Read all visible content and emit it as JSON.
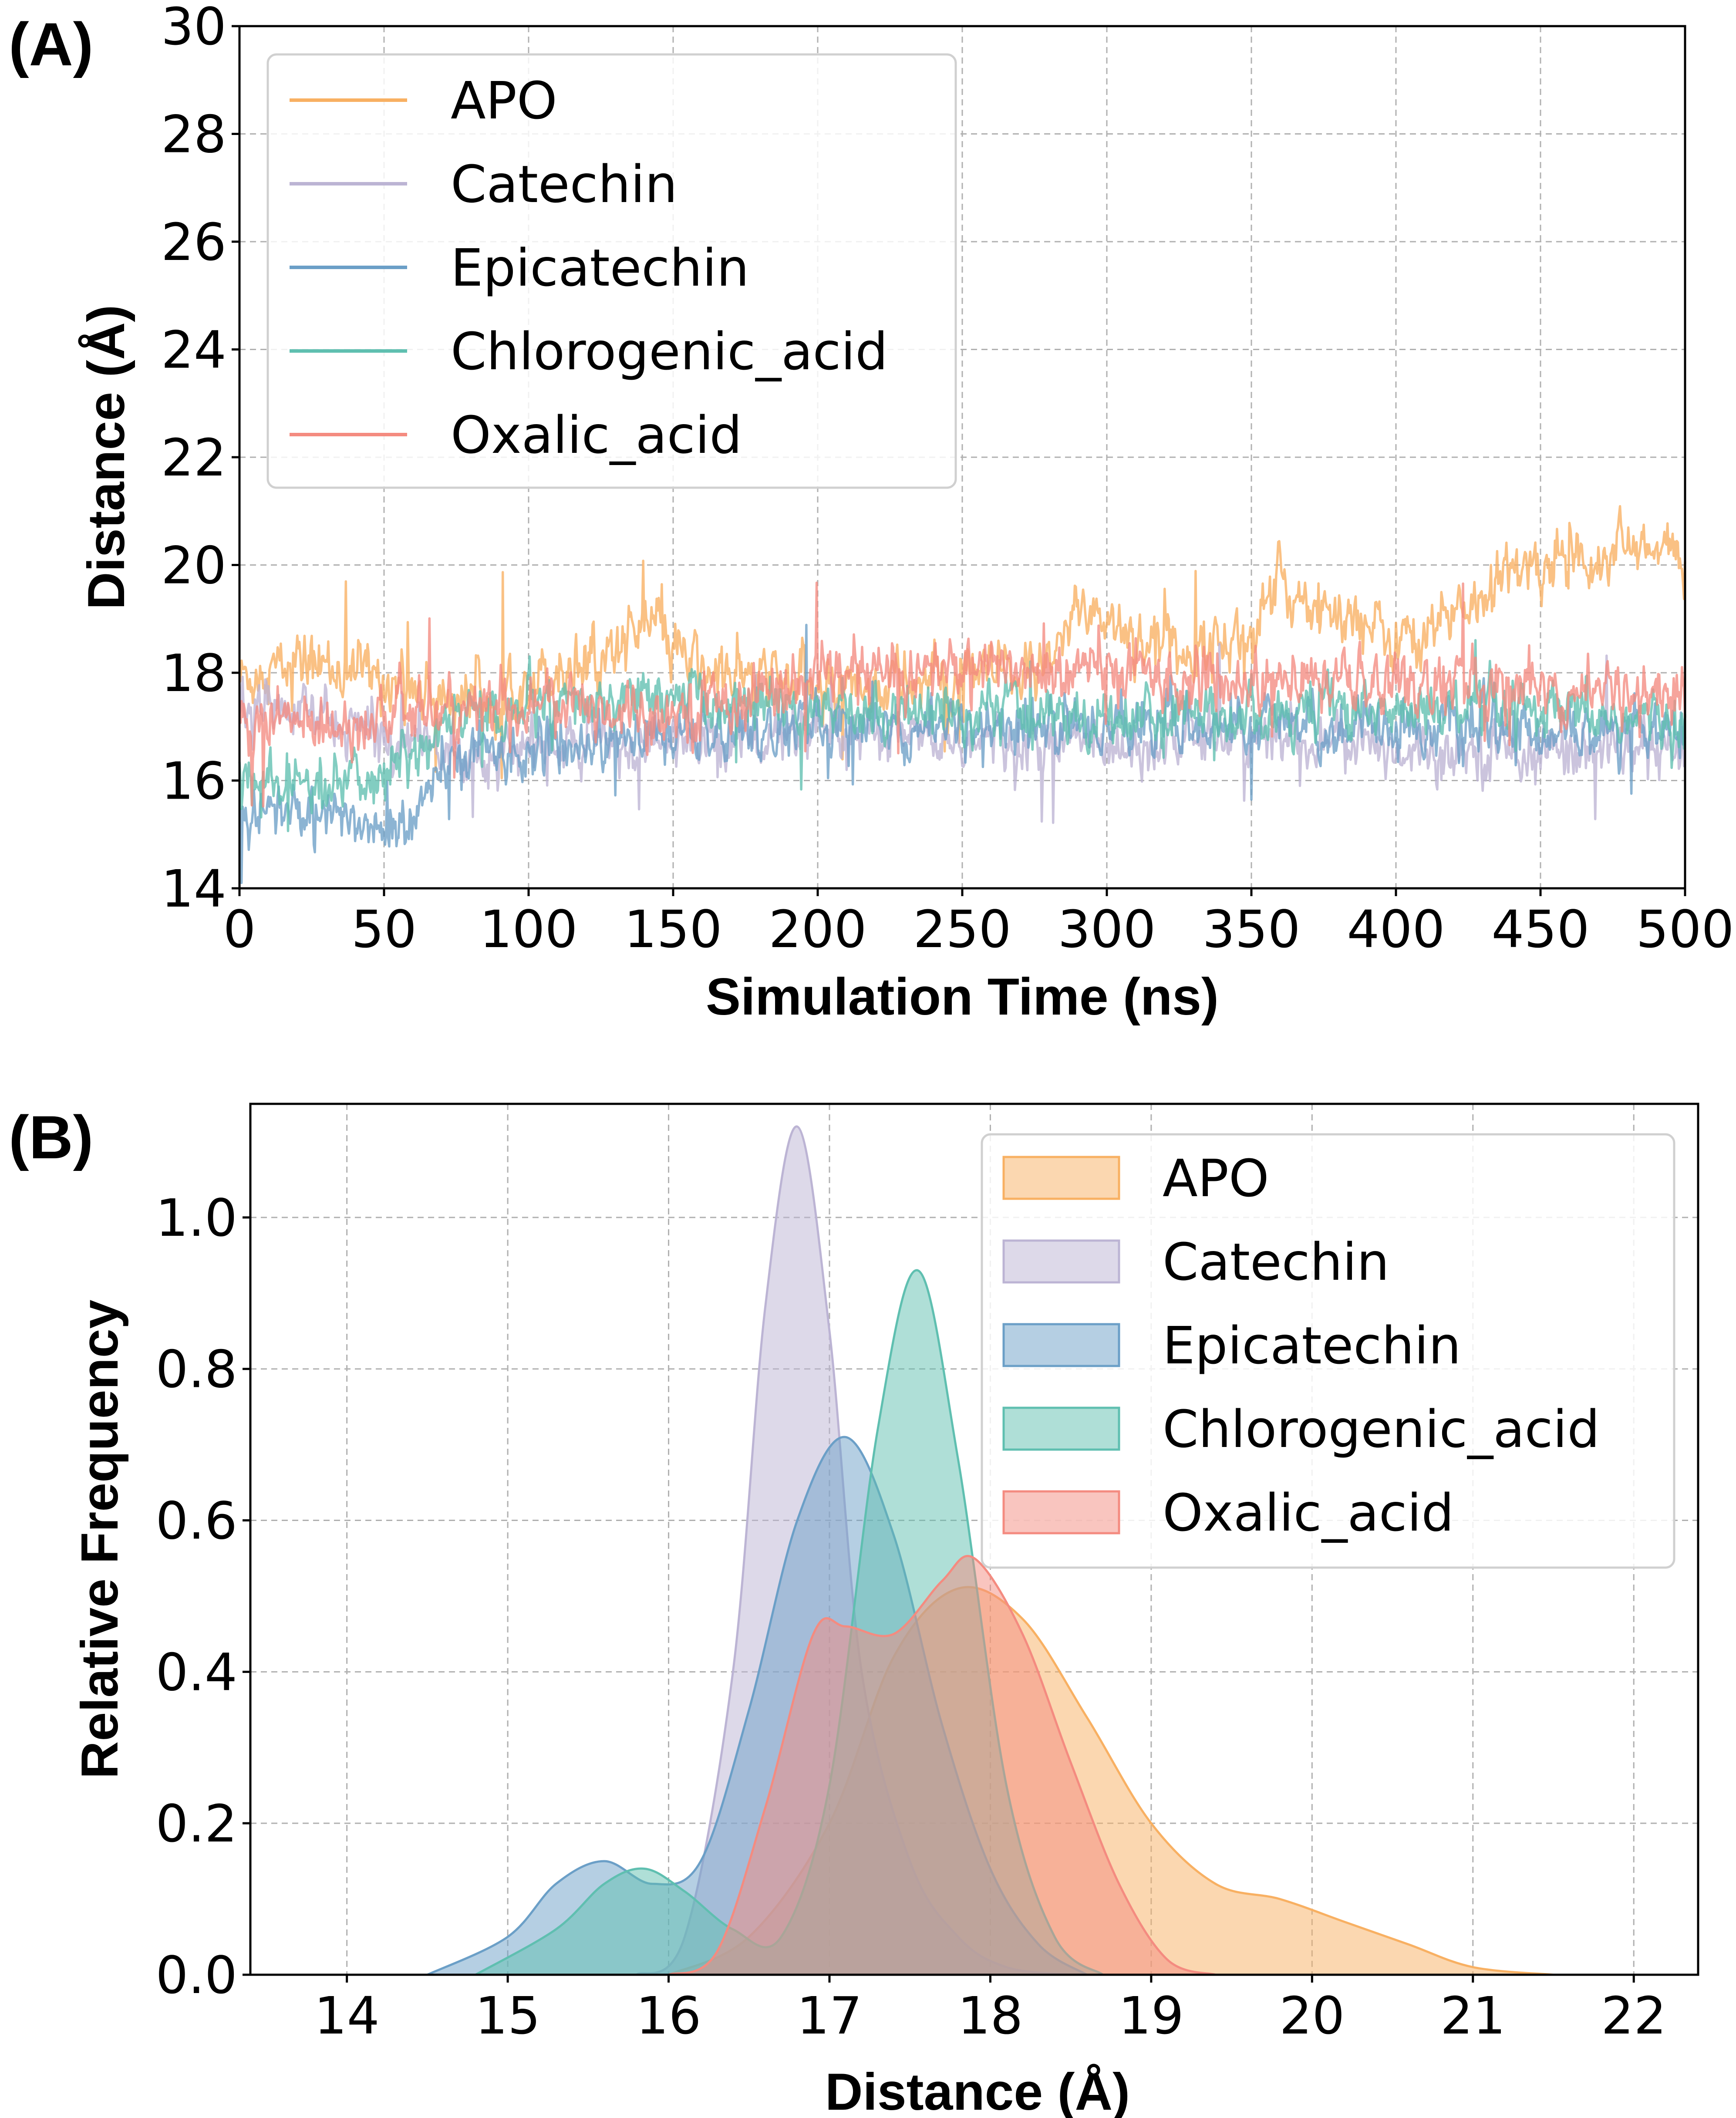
{
  "panels": {
    "a": {
      "label": "(A)"
    },
    "b": {
      "label": "(B)"
    }
  },
  "chart_data": [
    {
      "type": "line",
      "panel": "A",
      "title": "",
      "xlabel": "Simulation Time (ns)",
      "ylabel": "Distance (Å)",
      "xlim": [
        0,
        500
      ],
      "ylim": [
        14,
        30
      ],
      "xticks": [
        "0",
        "50",
        "100",
        "150",
        "200",
        "250",
        "300",
        "350",
        "400",
        "450",
        "500"
      ],
      "yticks": [
        "14",
        "16",
        "18",
        "20",
        "22",
        "24",
        "26",
        "28",
        "30"
      ],
      "grid": true,
      "legend_position": "top-left",
      "series": [
        {
          "name": "APO",
          "color": "#f8b062",
          "x": [
            0,
            25,
            50,
            75,
            100,
            125,
            140,
            160,
            200,
            250,
            280,
            290,
            320,
            350,
            360,
            400,
            420,
            440,
            460,
            480,
            500
          ],
          "y": [
            17.9,
            18.2,
            17.9,
            17.5,
            17.9,
            18.3,
            18.9,
            18.0,
            17.7,
            17.9,
            18.0,
            19.3,
            18.4,
            18.7,
            19.6,
            18.6,
            19.1,
            19.8,
            20.2,
            20.3,
            20.1
          ]
        },
        {
          "name": "Catechin",
          "color": "#bcb4d4",
          "x": [
            0,
            25,
            50,
            75,
            100,
            150,
            200,
            250,
            300,
            350,
            400,
            450,
            500
          ],
          "y": [
            17.4,
            17.2,
            16.8,
            16.5,
            16.6,
            16.7,
            16.8,
            16.7,
            16.7,
            16.8,
            16.6,
            16.6,
            16.5
          ]
        },
        {
          "name": "Epicatechin",
          "color": "#6b9fc7",
          "x": [
            0,
            25,
            50,
            60,
            75,
            100,
            150,
            200,
            250,
            300,
            350,
            400,
            450,
            500
          ],
          "y": [
            15.5,
            15.4,
            15.1,
            15.3,
            16.4,
            16.6,
            16.8,
            17.0,
            17.0,
            17.0,
            17.0,
            17.0,
            16.9,
            17.0
          ]
        },
        {
          "name": "Chlorogenic_acid",
          "color": "#5fbfb0",
          "x": [
            0,
            25,
            50,
            75,
            100,
            125,
            150,
            200,
            250,
            300,
            350,
            400,
            450,
            500
          ],
          "y": [
            15.9,
            15.8,
            16.1,
            17.2,
            17.3,
            17.4,
            17.5,
            17.3,
            17.3,
            17.2,
            17.3,
            17.3,
            17.2,
            17.1
          ]
        },
        {
          "name": "Oxalic_acid",
          "color": "#f48b80",
          "x": [
            0,
            50,
            100,
            150,
            200,
            250,
            300,
            350,
            400,
            450,
            500
          ],
          "y": [
            17.0,
            17.2,
            17.4,
            17.3,
            17.9,
            18.1,
            18.0,
            17.8,
            17.8,
            17.7,
            17.6
          ]
        }
      ]
    },
    {
      "type": "area",
      "panel": "B",
      "title": "",
      "xlabel": "Distance (Å)",
      "ylabel": "Relative Frequency",
      "xlim": [
        13.4,
        22.4
      ],
      "ylim": [
        0,
        1.15
      ],
      "xticks": [
        "14",
        "15",
        "16",
        "17",
        "18",
        "19",
        "20",
        "21",
        "22"
      ],
      "yticks": [
        "0.0",
        "0.2",
        "0.4",
        "0.6",
        "0.8",
        "1.0"
      ],
      "grid": true,
      "legend_position": "top-right",
      "series": [
        {
          "name": "APO",
          "color": "#f8b062",
          "x": [
            16.0,
            16.5,
            17.0,
            17.4,
            17.8,
            18.2,
            18.6,
            19.0,
            19.4,
            19.8,
            20.2,
            20.6,
            21.0,
            21.5
          ],
          "y": [
            0.0,
            0.05,
            0.2,
            0.42,
            0.51,
            0.47,
            0.34,
            0.2,
            0.12,
            0.1,
            0.07,
            0.04,
            0.01,
            0.0
          ]
        },
        {
          "name": "Catechin",
          "color": "#bcb4d4",
          "x": [
            15.8,
            16.1,
            16.4,
            16.6,
            16.8,
            17.0,
            17.2,
            17.5,
            17.8,
            18.1,
            18.5
          ],
          "y": [
            0.0,
            0.05,
            0.4,
            0.88,
            1.12,
            0.85,
            0.4,
            0.15,
            0.05,
            0.01,
            0.0
          ]
        },
        {
          "name": "Epicatechin",
          "color": "#6b9fc7",
          "x": [
            14.5,
            15.0,
            15.3,
            15.6,
            15.9,
            16.2,
            16.5,
            16.8,
            17.1,
            17.4,
            17.7,
            18.0,
            18.3,
            18.6
          ],
          "y": [
            0.0,
            0.05,
            0.12,
            0.15,
            0.12,
            0.15,
            0.35,
            0.6,
            0.71,
            0.58,
            0.33,
            0.14,
            0.04,
            0.0
          ]
        },
        {
          "name": "Chlorogenic_acid",
          "color": "#5fbfb0",
          "x": [
            14.8,
            15.3,
            15.6,
            15.85,
            16.1,
            16.4,
            16.7,
            17.0,
            17.3,
            17.55,
            17.8,
            18.1,
            18.4,
            18.7
          ],
          "y": [
            0.0,
            0.06,
            0.12,
            0.14,
            0.11,
            0.06,
            0.05,
            0.25,
            0.72,
            0.93,
            0.68,
            0.25,
            0.05,
            0.0
          ]
        },
        {
          "name": "Oxalic_acid",
          "color": "#f48b80",
          "x": [
            16.0,
            16.3,
            16.6,
            16.9,
            17.1,
            17.4,
            17.7,
            17.9,
            18.2,
            18.5,
            18.8,
            19.1,
            19.4
          ],
          "y": [
            0.0,
            0.03,
            0.22,
            0.45,
            0.46,
            0.45,
            0.52,
            0.55,
            0.45,
            0.28,
            0.12,
            0.02,
            0.0
          ]
        }
      ]
    }
  ]
}
